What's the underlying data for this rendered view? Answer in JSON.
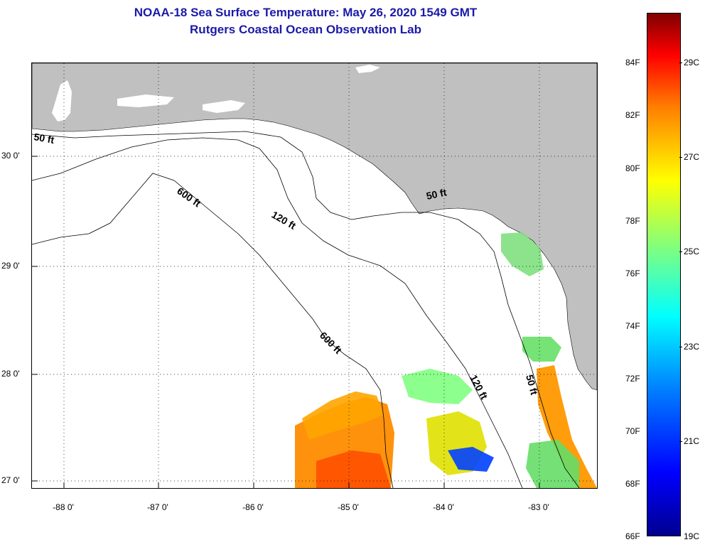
{
  "title": {
    "line1": "NOAA-18 Sea Surface Temperature:  May 26, 2020 1549 GMT",
    "line2": "Rutgers Coastal Ocean Observation Lab"
  },
  "map": {
    "lon_range": [
      -88.33,
      -82.42
    ],
    "lat_range": [
      26.96,
      30.82
    ],
    "lat_labels": [
      {
        "lat": 30,
        "text": "30 0'"
      },
      {
        "lat": 29,
        "text": "29 0'"
      },
      {
        "lat": 28,
        "text": "28 0'"
      },
      {
        "lat": 27,
        "text": "27 0'"
      }
    ],
    "lon_labels": [
      {
        "lon": -88,
        "text": "-88 0'"
      },
      {
        "lon": -87,
        "text": "-87 0'"
      },
      {
        "lon": -86,
        "text": "-86 0'"
      },
      {
        "lon": -85,
        "text": "-85 0'"
      },
      {
        "lon": -84,
        "text": "-84 0'"
      },
      {
        "lon": -83,
        "text": "-83 0'"
      }
    ],
    "land_color": "#c0c0c0",
    "ocean_color": "#ffffff",
    "grid": "dotted",
    "contour_labels": [
      {
        "text": "50 ft"
      },
      {
        "text": "600 ft"
      },
      {
        "text": "120 ft"
      },
      {
        "text": "50 ft"
      },
      {
        "text": "600 ft"
      },
      {
        "text": "120 ft"
      },
      {
        "text": "50 ft"
      }
    ]
  },
  "colorbar": {
    "fahrenheit_labels": [
      "84F",
      "82F",
      "80F",
      "78F",
      "76F",
      "74F",
      "72F",
      "70F",
      "68F",
      "66F"
    ],
    "celsius_labels": [
      "29C",
      "27C",
      "25C",
      "23C",
      "21C",
      "19C"
    ],
    "colors": [
      "#00008f",
      "#0000ff",
      "#007fff",
      "#00ffff",
      "#7fff7f",
      "#ffff00",
      "#ff7f00",
      "#ff0000",
      "#800000"
    ]
  }
}
